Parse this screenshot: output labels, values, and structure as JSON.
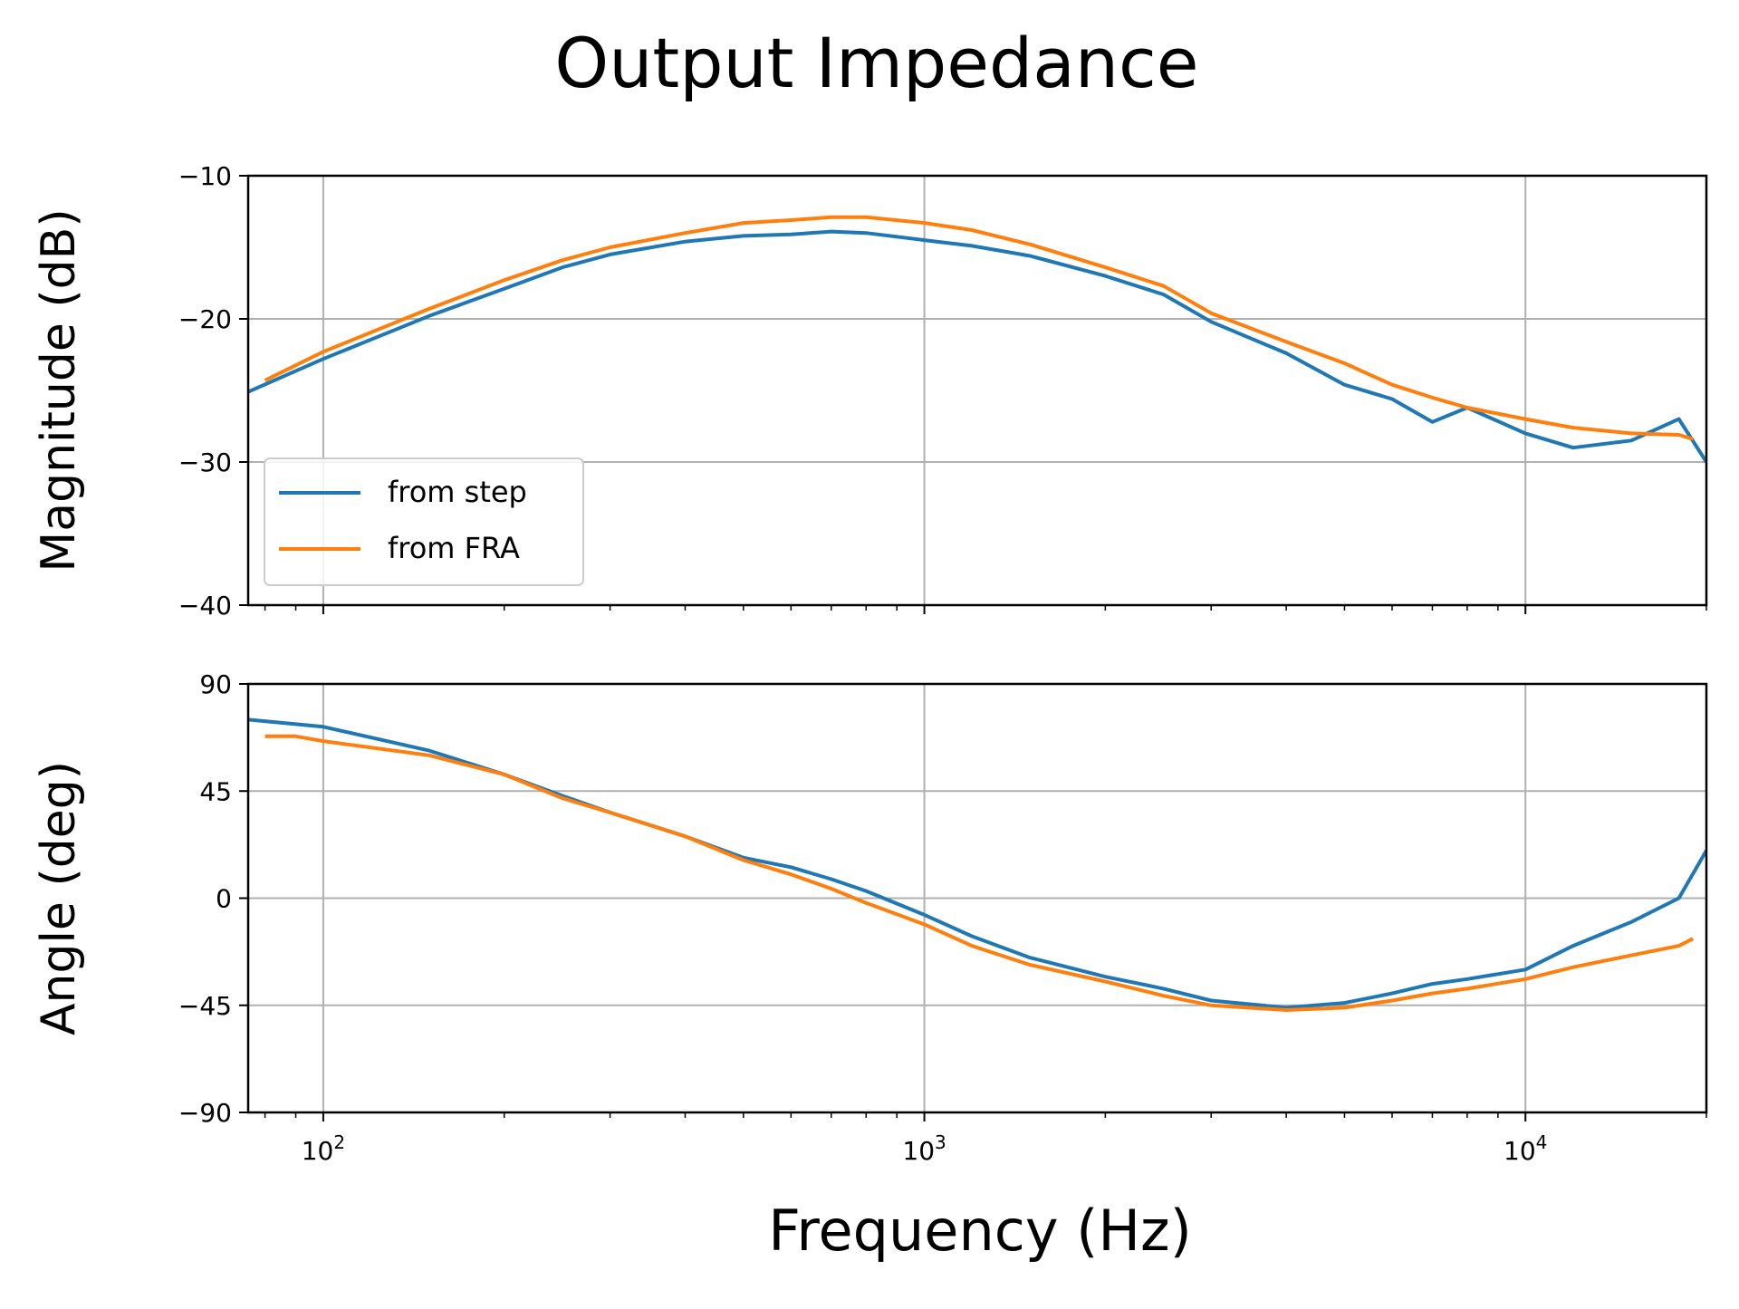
{
  "chart_data": {
    "type": "line",
    "title": "Output Impedance",
    "xlabel": "Frequency (Hz)",
    "x_scale": "log",
    "xlim": [
      75,
      20000
    ],
    "x_ticks": [
      {
        "value": 100,
        "base": "10",
        "exp": "2"
      },
      {
        "value": 1000,
        "base": "10",
        "exp": "3"
      },
      {
        "value": 10000,
        "base": "10",
        "exp": "4"
      }
    ],
    "grid": true,
    "legend": {
      "location": "lower-left of top panel",
      "entries": [
        "from step",
        "from FRA"
      ]
    },
    "colors": {
      "from step": "#1f77b4",
      "from FRA": "#ff7f0e"
    },
    "panels": [
      {
        "ylabel": "Magnitude (dB)",
        "ylim": [
          -40,
          -10
        ],
        "y_ticks": [
          -10,
          -20,
          -30,
          -40
        ],
        "y_tick_labels": [
          "−10",
          "−20",
          "−30",
          "−40"
        ],
        "series": [
          {
            "name": "from step",
            "x": [
              75,
              100,
              150,
              200,
              250,
              300,
              400,
              500,
              600,
              700,
              800,
              1000,
              1200,
              1500,
              2000,
              2500,
              3000,
              4000,
              5000,
              6000,
              7000,
              8000,
              10000,
              12000,
              15000,
              18000,
              20000
            ],
            "y": [
              -25.1,
              -22.8,
              -19.8,
              -17.9,
              -16.4,
              -15.5,
              -14.6,
              -14.2,
              -14.1,
              -13.9,
              -14.0,
              -14.5,
              -14.9,
              -15.6,
              -17.0,
              -18.3,
              -20.2,
              -22.4,
              -24.6,
              -25.6,
              -27.2,
              -26.2,
              -28.0,
              -29.0,
              -28.5,
              -27.0,
              -30.0
            ]
          },
          {
            "name": "from FRA",
            "x": [
              80,
              100,
              150,
              200,
              250,
              300,
              400,
              500,
              600,
              700,
              800,
              1000,
              1200,
              1500,
              2000,
              2500,
              3000,
              4000,
              5000,
              6000,
              7000,
              8000,
              10000,
              12000,
              15000,
              18000,
              19000
            ],
            "y": [
              -24.3,
              -22.3,
              -19.3,
              -17.3,
              -15.9,
              -15.0,
              -14.0,
              -13.3,
              -13.1,
              -12.9,
              -12.9,
              -13.3,
              -13.8,
              -14.8,
              -16.4,
              -17.7,
              -19.6,
              -21.6,
              -23.1,
              -24.6,
              -25.5,
              -26.2,
              -27.0,
              -27.6,
              -28.0,
              -28.1,
              -28.4
            ]
          }
        ]
      },
      {
        "ylabel": "Angle (deg)",
        "ylim": [
          -90,
          90
        ],
        "y_ticks": [
          90,
          45,
          0,
          -45,
          -90
        ],
        "y_tick_labels": [
          "90",
          "45",
          "0",
          "−45",
          "−90"
        ],
        "series": [
          {
            "name": "from step",
            "x": [
              75,
              100,
              150,
              200,
              250,
              300,
              400,
              500,
              600,
              700,
              800,
              1000,
              1200,
              1500,
              2000,
              2500,
              3000,
              4000,
              5000,
              6000,
              7000,
              8000,
              10000,
              12000,
              15000,
              18000,
              20000
            ],
            "y": [
              75,
              72,
              62,
              52,
              43,
              36,
              26,
              17,
              13,
              8,
              3,
              -7,
              -16,
              -25,
              -33,
              -38,
              -43,
              -46,
              -44,
              -40,
              -36,
              -34,
              -30,
              -20,
              -10,
              0,
              20
            ]
          },
          {
            "name": "from FRA",
            "x": [
              80,
              90,
              100,
              150,
              200,
              250,
              300,
              400,
              500,
              600,
              700,
              800,
              1000,
              1200,
              1500,
              2000,
              2500,
              3000,
              4000,
              5000,
              6000,
              7000,
              8000,
              10000,
              12000,
              15000,
              18000,
              19000
            ],
            "y": [
              68,
              68,
              66,
              60,
              52,
              42,
              36,
              26,
              16,
              10,
              4,
              -2,
              -11,
              -20,
              -28,
              -35,
              -41,
              -45,
              -47,
              -46,
              -43,
              -40,
              -38,
              -34,
              -29,
              -24,
              -20,
              -17
            ]
          }
        ]
      }
    ]
  }
}
